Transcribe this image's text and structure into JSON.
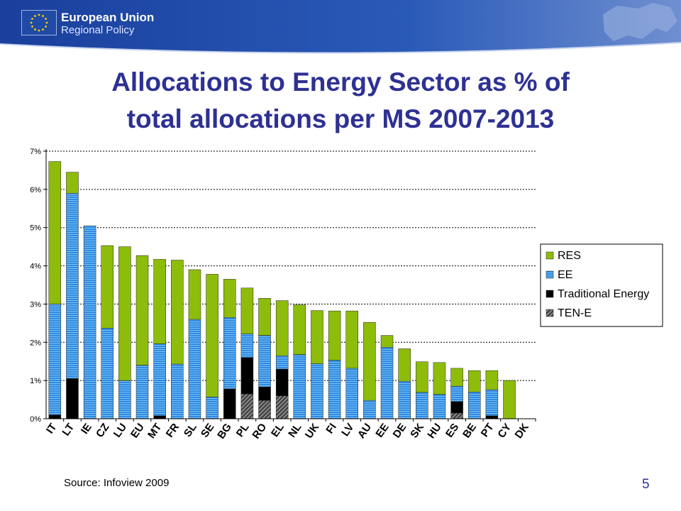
{
  "header": {
    "brand_name": "European Union",
    "brand_subtitle": "Regional Policy"
  },
  "slide": {
    "title_line1": "Allocations to Energy Sector as % of",
    "title_line2": "total allocations per MS 2007-2013",
    "source": "Source: Infoview 2009",
    "page_number": "5"
  },
  "colors": {
    "title": "#2e3192",
    "banner": "#1f4aa6",
    "res": "#8dbd0a",
    "ee": "#2f8be0",
    "traditional": "#000000",
    "tene": "#6a6a6a"
  },
  "chart_data": {
    "type": "bar",
    "stacked": true,
    "title": "",
    "xlabel": "",
    "ylabel": "",
    "ylim": [
      0,
      7
    ],
    "y_unit": "%",
    "y_ticks": [
      "0%",
      "1%",
      "2%",
      "3%",
      "4%",
      "5%",
      "6%",
      "7%"
    ],
    "grid": true,
    "legend_position": "right",
    "categories": [
      "IT",
      "LT",
      "IE",
      "CZ",
      "LU",
      "EU",
      "MT",
      "FR",
      "SL",
      "SE",
      "BG",
      "PL",
      "RO",
      "EL",
      "NL",
      "UK",
      "FI",
      "LV",
      "AU",
      "EE",
      "DE",
      "SK",
      "HU",
      "ES",
      "BE",
      "PT",
      "CY",
      "DK"
    ],
    "series": [
      {
        "name": "TEN-E",
        "values": [
          0,
          0,
          0,
          0,
          0,
          0,
          0,
          0,
          0,
          0,
          0,
          0.65,
          0.48,
          0.6,
          0,
          0,
          0,
          0,
          0,
          0,
          0,
          0,
          0,
          0.15,
          0,
          0,
          0,
          0
        ]
      },
      {
        "name": "Traditional Energy",
        "values": [
          0.1,
          1.05,
          0,
          0,
          0,
          0,
          0.08,
          0,
          0,
          0,
          0.78,
          0.95,
          0.35,
          0.7,
          0,
          0,
          0,
          0,
          0,
          0,
          0,
          0,
          0,
          0.3,
          0,
          0.08,
          0,
          0
        ]
      },
      {
        "name": "EE",
        "values": [
          2.9,
          4.85,
          5.05,
          2.37,
          1.0,
          1.4,
          1.88,
          1.43,
          2.6,
          0.57,
          1.87,
          0.62,
          1.35,
          0.35,
          1.68,
          1.44,
          1.53,
          1.32,
          0.48,
          1.87,
          0.98,
          0.69,
          0.64,
          0.4,
          0.7,
          0.68,
          0,
          0
        ]
      },
      {
        "name": "RES",
        "values": [
          3.73,
          0.55,
          0,
          2.16,
          3.5,
          2.87,
          2.21,
          2.72,
          1.3,
          3.21,
          1.0,
          1.2,
          0.97,
          1.44,
          1.3,
          1.39,
          1.29,
          1.5,
          2.04,
          0.31,
          0.85,
          0.8,
          0.83,
          0.47,
          0.56,
          0.5,
          1.0,
          0
        ]
      }
    ],
    "legend_order": [
      "RES",
      "EE",
      "Traditional Energy",
      "TEN-E"
    ]
  }
}
